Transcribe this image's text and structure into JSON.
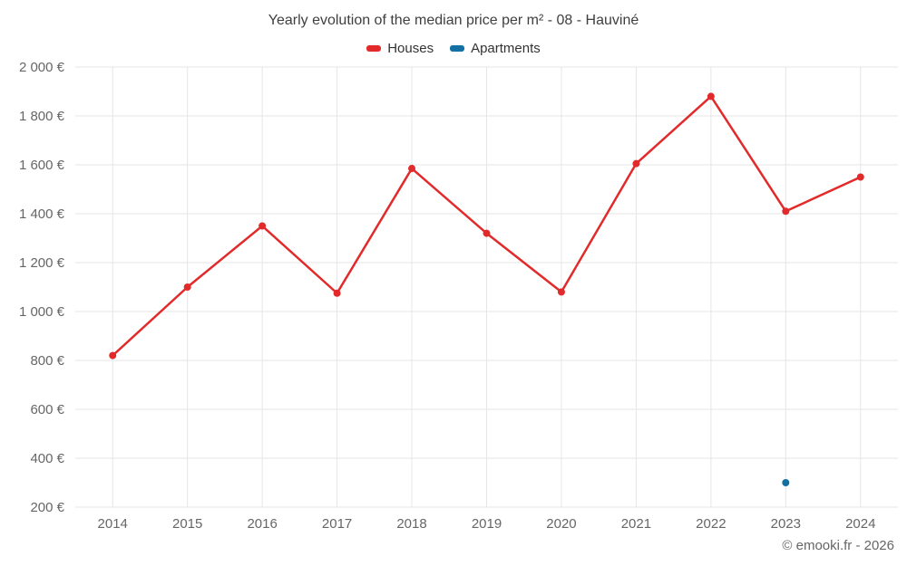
{
  "chart": {
    "title": "Yearly evolution of the median price per m² - 08 - Hauviné",
    "footer": "© emooki.fr - 2026"
  },
  "chart_data": {
    "type": "line",
    "title": "Yearly evolution of the median price per m² - 08 - Hauviné",
    "categories": [
      "2014",
      "2015",
      "2016",
      "2017",
      "2018",
      "2019",
      "2020",
      "2021",
      "2022",
      "2023",
      "2024"
    ],
    "series": [
      {
        "name": "Houses",
        "color": "#e22a2a",
        "values": [
          820,
          1100,
          1350,
          1075,
          1585,
          1320,
          1080,
          1605,
          1880,
          1410,
          1550
        ]
      },
      {
        "name": "Apartments",
        "color": "#1270a2",
        "values": [
          null,
          null,
          null,
          null,
          null,
          null,
          null,
          null,
          null,
          300,
          null
        ]
      }
    ],
    "xlabel": "",
    "ylabel": "",
    "ylim": [
      200,
      2000
    ],
    "y_tick_step": 200,
    "y_tick_labels": [
      "200 €",
      "400 €",
      "600 €",
      "800 €",
      "1 000 €",
      "1 200 €",
      "1 400 €",
      "1 600 €",
      "1 800 €",
      "2 000 €"
    ],
    "grid": true,
    "legend_position": "top"
  }
}
